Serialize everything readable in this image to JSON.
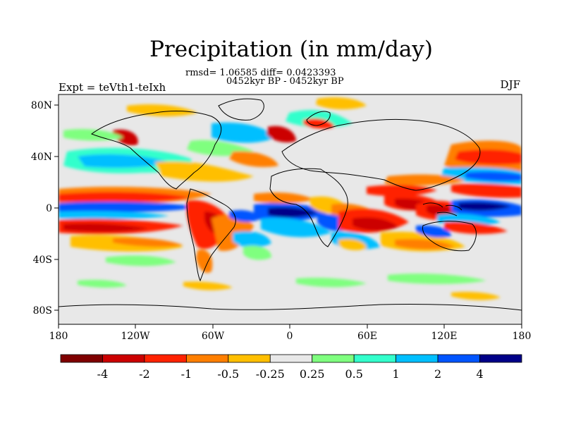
{
  "title": "Precipitation (in mm/day)",
  "stats": "rmsd= 1.06585 diff= 0.0423393",
  "period": "0452kyr BP - 0452kyr BP",
  "experiment": "Expt = teVth1-teIxh",
  "season": "DJF",
  "map": {
    "lon_labels": [
      "180",
      "120W",
      "60W",
      "0",
      "60E",
      "120E",
      "180"
    ],
    "lat_labels": [
      "80N",
      "40N",
      "0",
      "40S",
      "80S"
    ]
  },
  "colorbar": {
    "labels": [
      "-4",
      "-2",
      "-1",
      "-0.5",
      "-0.25",
      "0.25",
      "0.5",
      "1",
      "2",
      "4"
    ],
    "colors": [
      "#7f0000",
      "#cc0000",
      "#ff2200",
      "#ff7f00",
      "#ffbf00",
      "#e8e8e8",
      "#7fff7f",
      "#33ffcc",
      "#00bfff",
      "#0055ff",
      "#000088"
    ]
  }
}
